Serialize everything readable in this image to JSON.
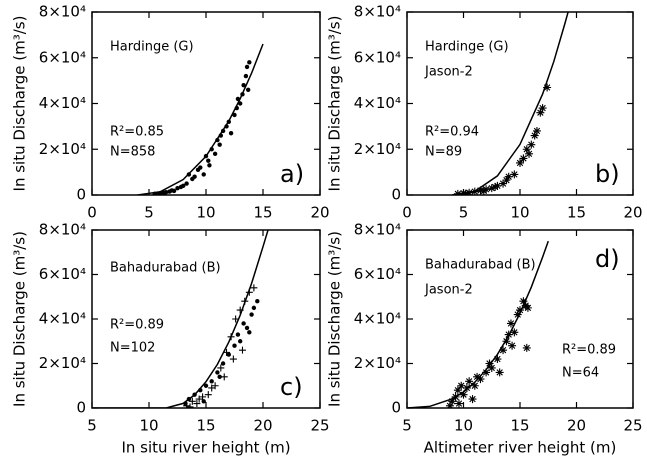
{
  "chart_data": [
    {
      "type": "scatter",
      "panel_label": "a)",
      "ylabel": "In situ Discharge (m³/s)",
      "annotations": [
        "Hardinge (G)",
        "R²=0.85",
        "N=858"
      ],
      "xlim": [
        0,
        20
      ],
      "xticks": [
        0,
        5,
        10,
        15,
        20
      ],
      "ylim": [
        0,
        80000
      ],
      "yticks": [
        0,
        {
          "value": 20000,
          "label": "2×10⁴"
        },
        {
          "value": 40000,
          "label": "4×10⁴"
        },
        {
          "value": 60000,
          "label": "6×10⁴"
        },
        {
          "value": 80000,
          "label": "8×10⁴"
        }
      ],
      "series": [
        {
          "marker": "dot",
          "color": "#000000",
          "x": [
            5.5,
            6,
            6.3,
            6.8,
            7,
            7.2,
            7.5,
            8,
            8.3,
            8.8,
            9,
            9.5,
            9.8,
            10,
            10.2,
            10.5,
            10.8,
            11,
            11.2,
            11.5,
            11.8,
            12,
            12.2,
            12.5,
            12.7,
            13,
            13.2,
            13.3,
            13.5,
            13.6,
            13.7,
            13.8,
            12.8,
            11.3,
            10.3,
            9.3,
            8.5,
            7.8,
            6.5,
            5.8
          ],
          "values": [
            500,
            800,
            1000,
            1500,
            2000,
            1800,
            3000,
            4000,
            5000,
            7000,
            8000,
            12000,
            9000,
            17000,
            15000,
            20000,
            18000,
            24000,
            22000,
            28000,
            30000,
            32000,
            27000,
            35000,
            38000,
            40000,
            44000,
            48000,
            52000,
            56000,
            46000,
            58000,
            42000,
            26000,
            13000,
            11000,
            9000,
            3500,
            1200,
            600
          ]
        },
        {
          "marker": "line",
          "color": "#000000",
          "x": [
            4,
            6,
            8,
            10,
            12,
            13,
            14,
            15
          ],
          "values": [
            0,
            1427,
            6790,
            16900,
            32300,
            42100,
            53300,
            66000
          ]
        }
      ]
    },
    {
      "type": "scatter",
      "panel_label": "b)",
      "ylabel": "In situ Discharge (m³/s)",
      "annotations": [
        "Hardinge (G)",
        "Jason-2",
        "R²=0.94",
        "N=89"
      ],
      "xlim": [
        0,
        20
      ],
      "xticks": [
        0,
        5,
        10,
        15,
        20
      ],
      "ylim": [
        0,
        80000
      ],
      "yticks": [
        0,
        {
          "value": 20000,
          "label": "2×10⁴"
        },
        {
          "value": 40000,
          "label": "4×10⁴"
        },
        {
          "value": 60000,
          "label": "6×10⁴"
        },
        {
          "value": 80000,
          "label": "8×10⁴"
        }
      ],
      "series": [
        {
          "marker": "asterisk",
          "color": "#000000",
          "x": [
            4.5,
            5,
            5.5,
            6,
            6.5,
            7,
            7.5,
            8,
            8.5,
            9,
            9.5,
            10,
            10.3,
            10.6,
            11,
            11.3,
            11.5,
            11.8,
            12,
            12.4,
            6.8,
            5.2,
            7.8,
            8.8,
            10.8
          ],
          "values": [
            500,
            800,
            1000,
            1500,
            2000,
            2500,
            3000,
            4000,
            5000,
            8000,
            9000,
            14000,
            16000,
            20000,
            22000,
            26000,
            28000,
            36000,
            38000,
            47000,
            1800,
            600,
            3500,
            6500,
            18000
          ]
        },
        {
          "marker": "line",
          "color": "#000000",
          "x": [
            4,
            6,
            8,
            10,
            12,
            13,
            14,
            14.3
          ],
          "values": [
            0,
            1580,
            8360,
            22100,
            44100,
            58500,
            75400,
            80800
          ]
        }
      ]
    },
    {
      "type": "scatter",
      "panel_label": "c)",
      "ylabel": "In situ Discharge (m³/s)",
      "xlabel": "In situ river height (m)",
      "annotations": [
        "Bahadurabad (B)",
        "R²=0.89",
        "N=102"
      ],
      "xlim": [
        5,
        25
      ],
      "xticks": [
        5,
        10,
        15,
        20,
        25
      ],
      "ylim": [
        0,
        80000
      ],
      "yticks": [
        0,
        {
          "value": 20000,
          "label": "2×10⁴"
        },
        {
          "value": 40000,
          "label": "4×10⁴"
        },
        {
          "value": 60000,
          "label": "6×10⁴"
        },
        {
          "value": 80000,
          "label": "8×10⁴"
        }
      ],
      "series": [
        {
          "marker": "dot",
          "color": "#000000",
          "x": [
            13.2,
            13.5,
            14,
            14.5,
            15,
            15.5,
            16,
            16.5,
            17,
            17.5,
            18,
            18.3,
            18.6,
            19,
            19.2,
            19.5,
            18.8,
            17.8,
            14.8,
            16.2
          ],
          "values": [
            2000,
            4000,
            6000,
            8000,
            10000,
            12000,
            16000,
            20000,
            24000,
            28000,
            30000,
            38000,
            36000,
            42000,
            45000,
            48000,
            34000,
            33000,
            3000,
            14000
          ]
        },
        {
          "marker": "plus",
          "color": "#000000",
          "x": [
            13.3,
            13.8,
            14.2,
            14.7,
            15.2,
            15.8,
            16.3,
            16.8,
            17.2,
            17.6,
            18,
            18.4,
            18.8,
            19.2,
            15.5,
            16.6,
            17.4,
            13.6,
            14.4,
            18.2
          ],
          "values": [
            1000,
            3000,
            2000,
            5000,
            6000,
            10000,
            18000,
            25000,
            32000,
            40000,
            44000,
            48000,
            52000,
            54000,
            9000,
            14000,
            22000,
            500,
            4000,
            26000
          ]
        },
        {
          "marker": "line",
          "color": "#000000",
          "x": [
            5,
            8,
            11.5,
            13,
            14,
            15,
            16,
            17,
            18,
            19,
            20,
            20.5
          ],
          "values": [
            0,
            0,
            0,
            2060,
            5880,
            11800,
            19600,
            29600,
            41700,
            56000,
            72500,
            81000
          ]
        }
      ]
    },
    {
      "type": "scatter",
      "panel_label": "d)",
      "ylabel": "In situ Discharge (m³/s)",
      "xlabel": "Altimeter river height (m)",
      "annotations": [
        "Bahadurabad (B)",
        "Jason-2",
        "R²=0.89",
        "N=64"
      ],
      "xlim": [
        5,
        25
      ],
      "xticks": [
        5,
        10,
        15,
        20,
        25
      ],
      "ylim": [
        0,
        80000
      ],
      "yticks": [
        0,
        {
          "value": 20000,
          "label": "2×10⁴"
        },
        {
          "value": 40000,
          "label": "4×10⁴"
        },
        {
          "value": 60000,
          "label": "6×10⁴"
        },
        {
          "value": 80000,
          "label": "8×10⁴"
        }
      ],
      "series": [
        {
          "marker": "asterisk",
          "color": "#000000",
          "x": [
            8.8,
            9,
            9.3,
            9.5,
            9.8,
            10,
            10.3,
            10.5,
            11,
            11.2,
            11.5,
            12,
            12.3,
            12.5,
            13,
            13.5,
            13.8,
            14,
            14.3,
            14.5,
            14.8,
            15,
            15.3,
            15.5,
            15.7,
            14.2,
            13.2,
            15.6,
            10.8,
            9.6
          ],
          "values": [
            1000,
            3000,
            5000,
            8000,
            10000,
            6000,
            9000,
            12000,
            10000,
            14000,
            13000,
            16000,
            20000,
            18000,
            22000,
            26000,
            30000,
            33000,
            28000,
            34000,
            42000,
            44000,
            48000,
            46000,
            45000,
            38000,
            16000,
            27000,
            4000,
            2000
          ]
        },
        {
          "marker": "line",
          "color": "#000000",
          "x": [
            5,
            7,
            9,
            10,
            11,
            12,
            13,
            14,
            15,
            16,
            17,
            17.5
          ],
          "values": [
            0,
            700,
            4120,
            7200,
            11600,
            17200,
            24100,
            32500,
            42600,
            54300,
            67800,
            75000
          ]
        }
      ]
    }
  ]
}
